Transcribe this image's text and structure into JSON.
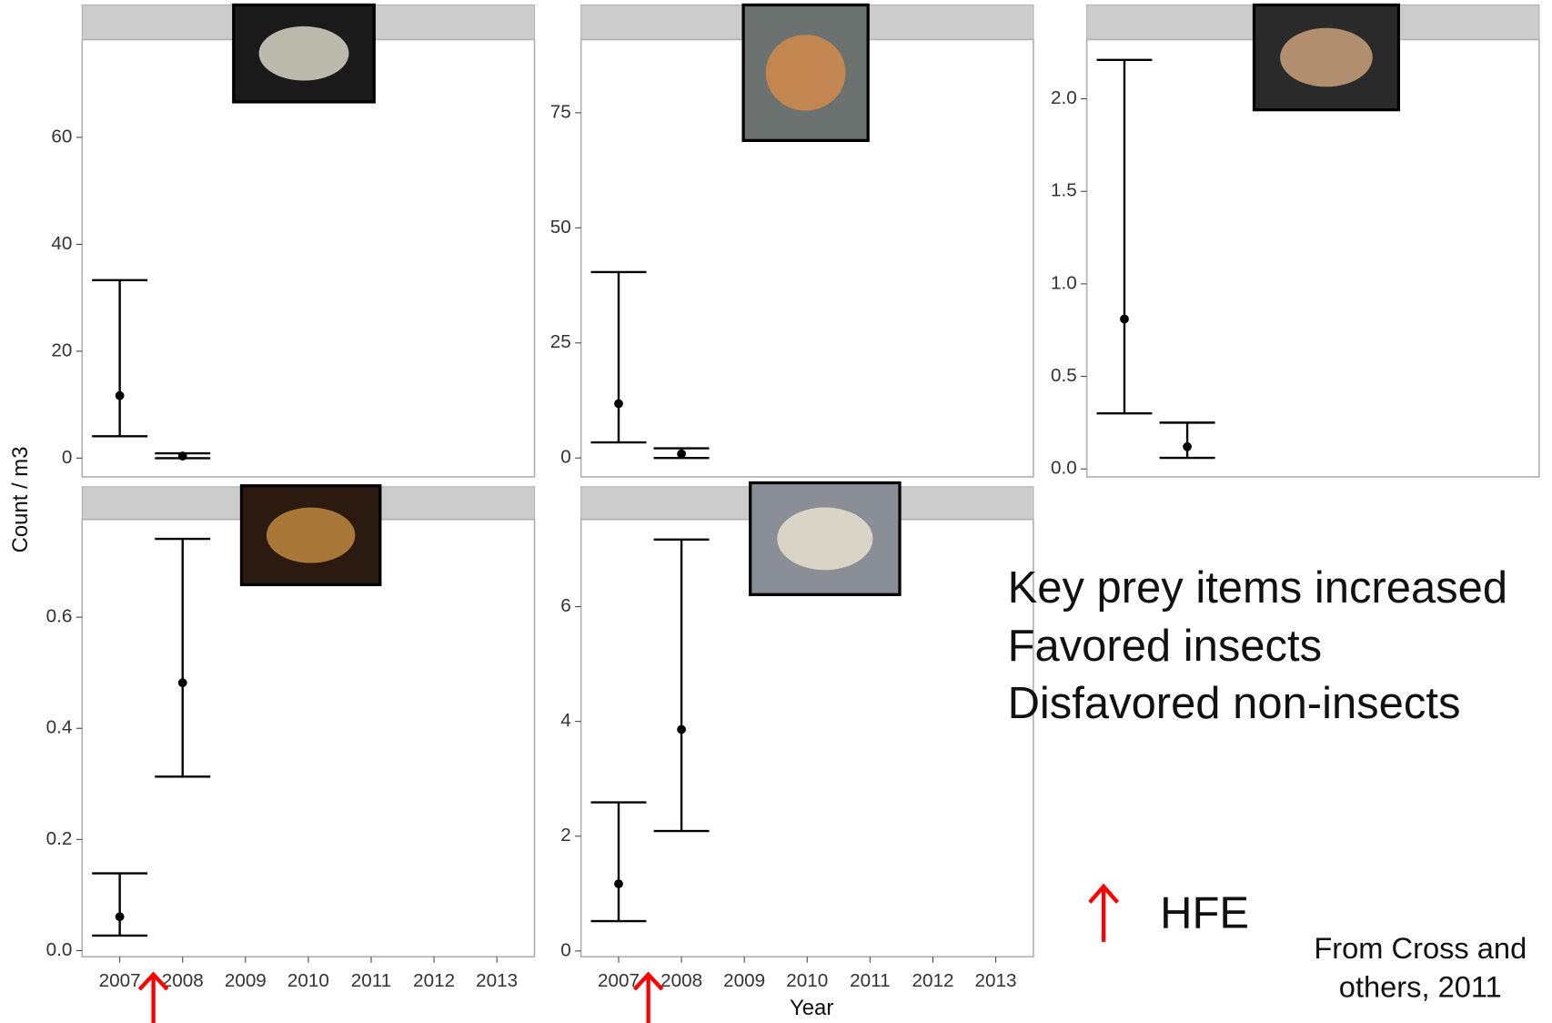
{
  "chart_data": [
    {
      "type": "errorbar",
      "categories": [
        "2007",
        "2008",
        "2009",
        "2010",
        "2011",
        "2012",
        "2013"
      ],
      "show_x_labels": false,
      "values": [
        11.7,
        0.4,
        null,
        null,
        null,
        null,
        null
      ],
      "lower": [
        4.1,
        0.0,
        null,
        null,
        null,
        null,
        null
      ],
      "upper": [
        33.3,
        0.9,
        null,
        null,
        null,
        null,
        null
      ],
      "ylim": [
        -3.5,
        78.3
      ],
      "yticks": [
        0,
        20,
        40,
        60
      ],
      "color": "#000000"
    },
    {
      "type": "errorbar",
      "categories": [
        "2007",
        "2008",
        "2009",
        "2010",
        "2011",
        "2012",
        "2013"
      ],
      "show_x_labels": false,
      "values": [
        11.8,
        0.9,
        null,
        null,
        null,
        null,
        null
      ],
      "lower": [
        3.4,
        0.0,
        null,
        null,
        null,
        null,
        null
      ],
      "upper": [
        40.4,
        2.1,
        null,
        null,
        null,
        null,
        null
      ],
      "ylim": [
        -4.1,
        90.9
      ],
      "yticks": [
        0,
        25,
        50,
        75
      ],
      "color": "#000000"
    },
    {
      "type": "errorbar",
      "categories": [
        "2007",
        "2008",
        "2009",
        "2010",
        "2011",
        "2012",
        "2013"
      ],
      "show_x_labels": false,
      "values": [
        0.81,
        0.12,
        null,
        null,
        null,
        null,
        null
      ],
      "lower": [
        0.3,
        0.06,
        null,
        null,
        null,
        null,
        null
      ],
      "upper": [
        2.21,
        0.25,
        null,
        null,
        null,
        null,
        null
      ],
      "ylim": [
        -0.043,
        2.32
      ],
      "yticks": [
        {
          "value": 0,
          "label": "0.0"
        },
        0.5,
        {
          "value": 1,
          "label": "1.0"
        },
        1.5,
        {
          "value": 2,
          "label": "2.0"
        }
      ],
      "color": "#000000"
    },
    {
      "type": "errorbar",
      "categories": [
        "2007",
        "2008",
        "2009",
        "2010",
        "2011",
        "2012",
        "2013"
      ],
      "show_x_labels": true,
      "values": [
        0.061,
        0.482,
        null,
        null,
        null,
        null,
        null
      ],
      "lower": [
        0.027,
        0.313,
        null,
        null,
        null,
        null,
        null
      ],
      "upper": [
        0.139,
        0.741,
        null,
        null,
        null,
        null,
        null
      ],
      "ylim": [
        -0.011,
        0.776
      ],
      "yticks": [
        {
          "value": 0,
          "label": "0.0"
        },
        0.2,
        0.4,
        0.6
      ],
      "color": "#000000"
    },
    {
      "type": "errorbar",
      "categories": [
        "2007",
        "2008",
        "2009",
        "2010",
        "2011",
        "2012",
        "2013"
      ],
      "show_x_labels": true,
      "values": [
        1.17,
        3.86,
        null,
        null,
        null,
        null,
        null
      ],
      "lower": [
        0.52,
        2.09,
        null,
        null,
        null,
        null,
        null
      ],
      "upper": [
        2.59,
        7.17,
        null,
        null,
        null,
        null,
        null
      ],
      "ylim": [
        -0.1,
        7.52
      ],
      "yticks": [
        0,
        2,
        4,
        6
      ],
      "color": "#000000"
    }
  ],
  "axes": {
    "xlabel": "Year",
    "ylabel": "Count / m3"
  },
  "notes": {
    "lines": [
      "Key prey items increased",
      "Favored insects",
      "Disfavored non-insects"
    ],
    "legend": "HFE",
    "source": [
      "From Cross and",
      "others, 2011"
    ]
  }
}
